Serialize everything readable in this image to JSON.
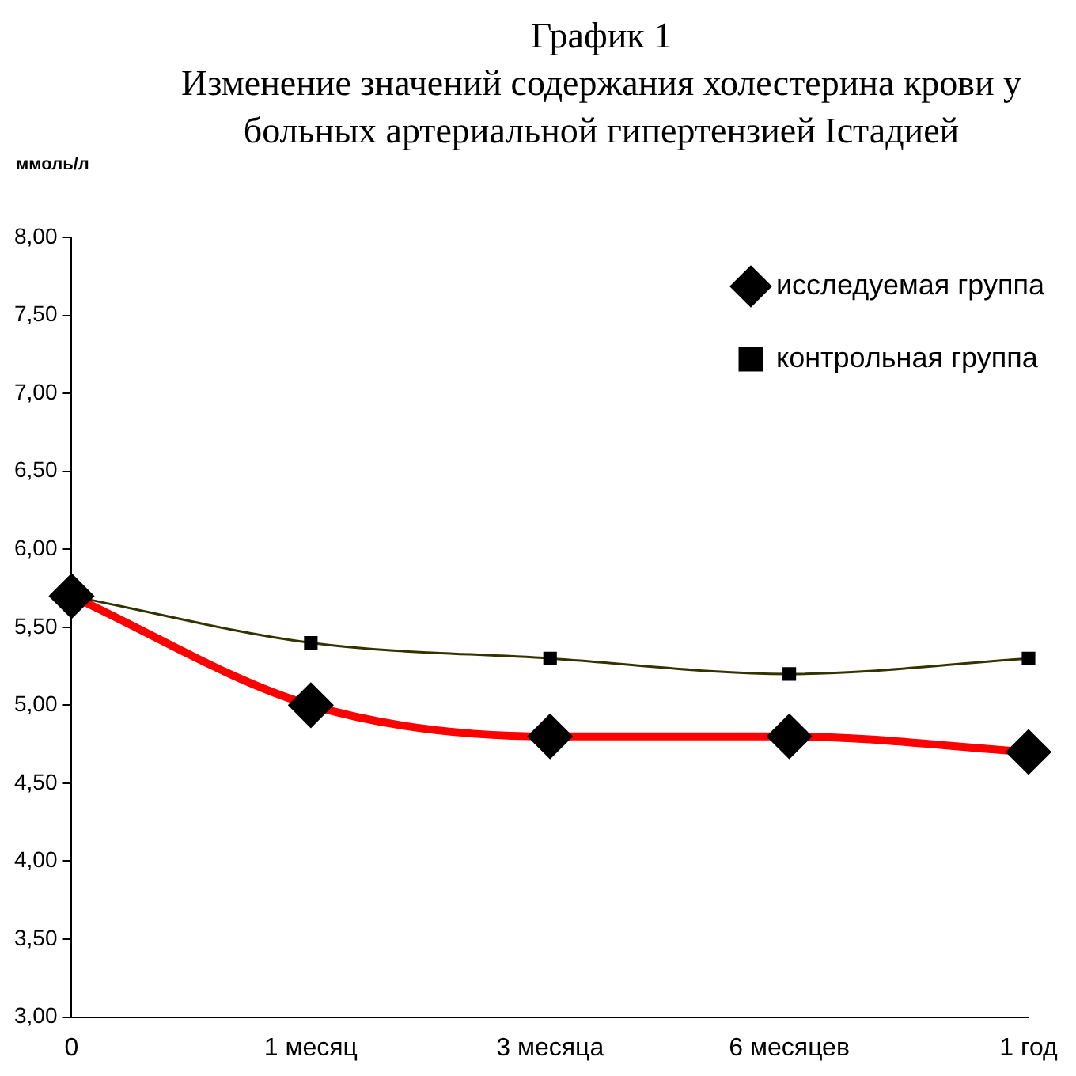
{
  "chart_data": {
    "type": "line",
    "title": "График 1",
    "subtitle": "Изменение значений содержания холестерина крови у больных артериальной гипертензией Iстадией",
    "ylabel": "ммоль/л",
    "categories": [
      "0",
      "1 месяц",
      "3 месяца",
      "6 месяцев",
      "1 год"
    ],
    "series": [
      {
        "name": "исследуемая группа",
        "color": "#ff0000",
        "marker": "diamond",
        "values": [
          5.7,
          5.0,
          4.8,
          4.8,
          4.7
        ]
      },
      {
        "name": "контрольная группа",
        "color": "#333300",
        "marker": "square",
        "values": [
          5.7,
          5.4,
          5.3,
          5.2,
          5.3
        ]
      }
    ],
    "ylim": [
      3,
      8
    ],
    "yticks": [
      {
        "value": 3,
        "label": "3,00"
      },
      {
        "value": 3.5,
        "label": "3,50"
      },
      {
        "value": 4,
        "label": "4,00"
      },
      {
        "value": 4.5,
        "label": "4,50"
      },
      {
        "value": 5,
        "label": "5,00"
      },
      {
        "value": 5.5,
        "label": "5,50"
      },
      {
        "value": 6,
        "label": "6,00"
      },
      {
        "value": 6.5,
        "label": "6,50"
      },
      {
        "value": 7,
        "label": "7,00"
      },
      {
        "value": 7.5,
        "label": "7,50"
      },
      {
        "value": 8,
        "label": "8,00"
      }
    ],
    "grid": false,
    "legend": "top right"
  }
}
